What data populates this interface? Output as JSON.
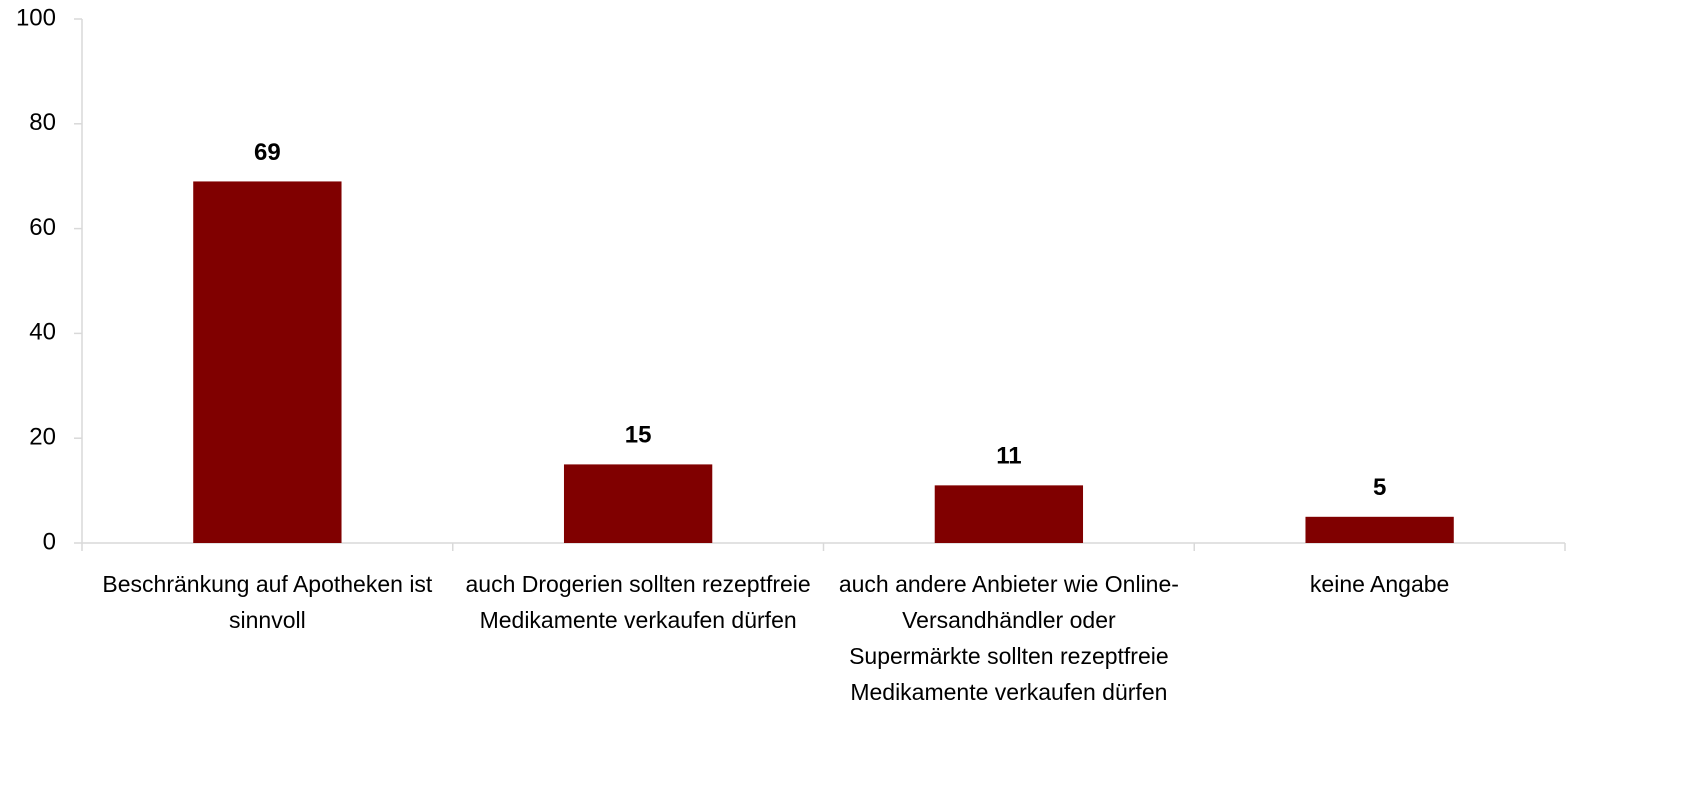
{
  "chart_data": {
    "type": "bar",
    "categories": [
      "Beschränkung auf Apotheken ist sinnvoll",
      "auch Drogerien sollten rezeptfreie Medikamente verkaufen dürfen",
      "auch andere Anbieter wie Online-Versandhändler oder Supermärkte sollten rezeptfreie Medikamente verkaufen dürfen",
      "keine Angabe"
    ],
    "values": [
      69,
      15,
      11,
      5
    ],
    "color": "#800000",
    "ylim": [
      0,
      100
    ],
    "yticks": [
      0,
      20,
      40,
      60,
      80,
      100
    ],
    "grid": false
  }
}
